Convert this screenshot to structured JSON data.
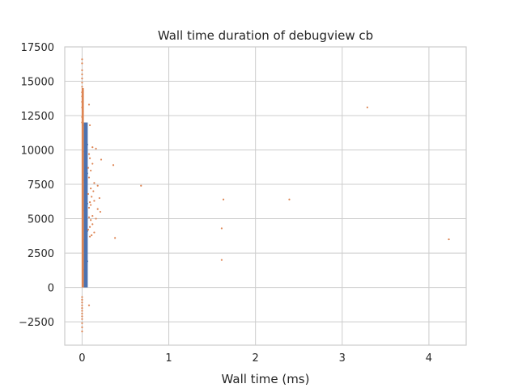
{
  "chart_data": {
    "type": "scatter",
    "title": "Wall time duration of debugview cb",
    "xlabel": "Wall time (ms)",
    "ylabel": "",
    "xlim": [
      -0.2,
      4.43
    ],
    "ylim": [
      -4200,
      17500
    ],
    "xticks": [
      0,
      1,
      2,
      3,
      4
    ],
    "yticks": [
      -2500,
      0,
      2500,
      5000,
      7500,
      10000,
      12500,
      15000,
      17500
    ],
    "xtick_labels": [
      "0",
      "1",
      "2",
      "3",
      "4"
    ],
    "ytick_labels": [
      "−2500",
      "0",
      "2500",
      "5000",
      "7500",
      "10000",
      "12500",
      "15000",
      "17500"
    ],
    "grid": true,
    "series": [
      {
        "color": "#4c72b0",
        "band": {
          "x_min": 0.02,
          "x_max": 0.065,
          "y_min": 0,
          "y_max": 12000
        },
        "points": [
          [
            0.03,
            11800
          ],
          [
            0.05,
            11500
          ],
          [
            0.04,
            10900
          ],
          [
            0.06,
            10400
          ],
          [
            0.03,
            9900
          ],
          [
            0.05,
            9300
          ],
          [
            0.04,
            8800
          ],
          [
            0.06,
            8300
          ],
          [
            0.03,
            7800
          ],
          [
            0.05,
            7200
          ],
          [
            0.04,
            6700
          ],
          [
            0.06,
            6100
          ],
          [
            0.03,
            5600
          ],
          [
            0.05,
            5100
          ],
          [
            0.04,
            4600
          ],
          [
            0.06,
            4100
          ],
          [
            0.03,
            3500
          ],
          [
            0.05,
            3000
          ],
          [
            0.04,
            2400
          ],
          [
            0.06,
            1900
          ],
          [
            0.03,
            1300
          ],
          [
            0.05,
            800
          ],
          [
            0.04,
            300
          ]
        ]
      },
      {
        "color": "#dd8452",
        "band": {
          "x_min": -0.005,
          "x_max": 0.02,
          "y_min": 0,
          "y_max": 14500
        },
        "points": [
          [
            0.0,
            16600
          ],
          [
            0.0,
            16300
          ],
          [
            0.0,
            15800
          ],
          [
            0.0,
            15500
          ],
          [
            0.0,
            15200
          ],
          [
            0.0,
            14900
          ],
          [
            0.0,
            14600
          ],
          [
            0.0,
            14200
          ],
          [
            0.0,
            13900
          ],
          [
            0.0,
            13500
          ],
          [
            0.0,
            13100
          ],
          [
            0.01,
            12800
          ],
          [
            0.0,
            12400
          ],
          [
            0.0,
            12000
          ],
          [
            0.0,
            -700
          ],
          [
            0.0,
            -900
          ],
          [
            0.0,
            -1100
          ],
          [
            0.0,
            -1300
          ],
          [
            0.0,
            -1500
          ],
          [
            0.0,
            -1700
          ],
          [
            0.0,
            -1900
          ],
          [
            0.0,
            -2100
          ],
          [
            0.0,
            -2300
          ],
          [
            0.0,
            -2600
          ],
          [
            0.0,
            -2900
          ],
          [
            0.0,
            -3200
          ],
          [
            0.08,
            13300
          ],
          [
            0.09,
            11800
          ],
          [
            0.08,
            -1300
          ],
          [
            0.12,
            10200
          ],
          [
            0.16,
            10100
          ],
          [
            0.08,
            9700
          ],
          [
            0.09,
            9400
          ],
          [
            0.22,
            9300
          ],
          [
            0.12,
            9000
          ],
          [
            0.36,
            8900
          ],
          [
            0.07,
            8700
          ],
          [
            0.1,
            8500
          ],
          [
            0.08,
            8000
          ],
          [
            0.14,
            7600
          ],
          [
            0.18,
            7400
          ],
          [
            0.1,
            7200
          ],
          [
            0.13,
            7000
          ],
          [
            0.07,
            6800
          ],
          [
            0.11,
            6600
          ],
          [
            0.2,
            6500
          ],
          [
            0.14,
            6300
          ],
          [
            0.09,
            6200
          ],
          [
            0.1,
            6000
          ],
          [
            0.08,
            5800
          ],
          [
            0.18,
            5700
          ],
          [
            0.21,
            5500
          ],
          [
            0.12,
            5200
          ],
          [
            0.08,
            5100
          ],
          [
            0.16,
            5000
          ],
          [
            0.1,
            4900
          ],
          [
            0.12,
            4600
          ],
          [
            0.09,
            4400
          ],
          [
            0.07,
            4200
          ],
          [
            0.14,
            4000
          ],
          [
            0.11,
            3800
          ],
          [
            0.09,
            3700
          ],
          [
            0.68,
            7400
          ],
          [
            0.38,
            3600
          ],
          [
            1.63,
            6400
          ],
          [
            1.61,
            4300
          ],
          [
            1.61,
            2000
          ],
          [
            2.39,
            6400
          ],
          [
            3.29,
            13100
          ],
          [
            4.23,
            3500
          ]
        ]
      }
    ]
  }
}
